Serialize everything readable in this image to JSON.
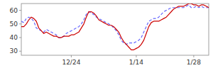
{
  "chart_data": {
    "type": "line",
    "categories": [
      null,
      null,
      null,
      null,
      null,
      null,
      null,
      null,
      null,
      null,
      null,
      null,
      null,
      null,
      null,
      null,
      null,
      null,
      null,
      null,
      "12/24",
      null,
      null,
      null,
      null,
      null,
      null,
      null,
      null,
      null,
      null,
      null,
      null,
      null,
      null,
      null,
      null,
      null,
      null,
      null,
      null,
      null,
      null,
      null,
      null,
      null,
      "1/14",
      null,
      null,
      null,
      null,
      null,
      null,
      null,
      null,
      null,
      null,
      null,
      null,
      null,
      null,
      null,
      null,
      null,
      null,
      null,
      null,
      null,
      null,
      "1/28",
      null,
      null,
      null,
      null,
      null,
      null
    ],
    "series": [
      {
        "color": "#6666ff",
        "line_style": "dashed",
        "values": [
          52,
          51,
          54,
          55,
          54,
          52,
          47,
          46,
          45,
          44,
          46,
          45,
          44,
          43,
          42,
          40,
          40,
          41,
          43,
          44,
          45,
          46,
          47,
          48,
          50,
          53,
          57,
          59,
          58,
          57,
          55,
          54,
          53,
          52,
          51,
          50,
          49,
          47,
          45,
          42,
          38,
          36,
          35,
          36,
          36,
          36,
          37,
          38,
          40,
          44,
          48,
          52,
          53,
          54,
          54,
          55,
          57,
          59,
          60,
          61,
          62,
          62,
          62,
          62,
          62,
          62,
          63,
          64,
          62,
          62,
          63,
          62,
          63,
          62,
          62,
          62
        ]
      },
      {
        "color": "#cc0000",
        "line_style": "solid",
        "values": [
          48,
          48,
          50,
          53,
          55,
          54,
          52,
          47,
          45,
          43,
          44,
          43,
          42,
          41,
          41,
          40,
          40,
          41,
          41,
          41,
          42,
          42,
          43,
          44,
          47,
          50,
          55,
          59,
          59,
          58,
          56,
          53,
          52,
          51,
          50,
          49,
          49,
          48,
          46,
          44,
          40,
          37,
          35,
          33,
          31,
          31,
          32,
          33,
          35,
          38,
          43,
          48,
          51,
          52,
          52,
          52,
          53,
          54,
          55,
          57,
          59,
          61,
          62,
          63,
          63,
          63,
          64,
          65,
          65,
          64,
          64,
          63,
          64,
          64,
          63,
          62
        ]
      }
    ],
    "ylim": [
      27,
      65
    ],
    "yticks": [
      30,
      40,
      50,
      60
    ],
    "grid": false
  }
}
